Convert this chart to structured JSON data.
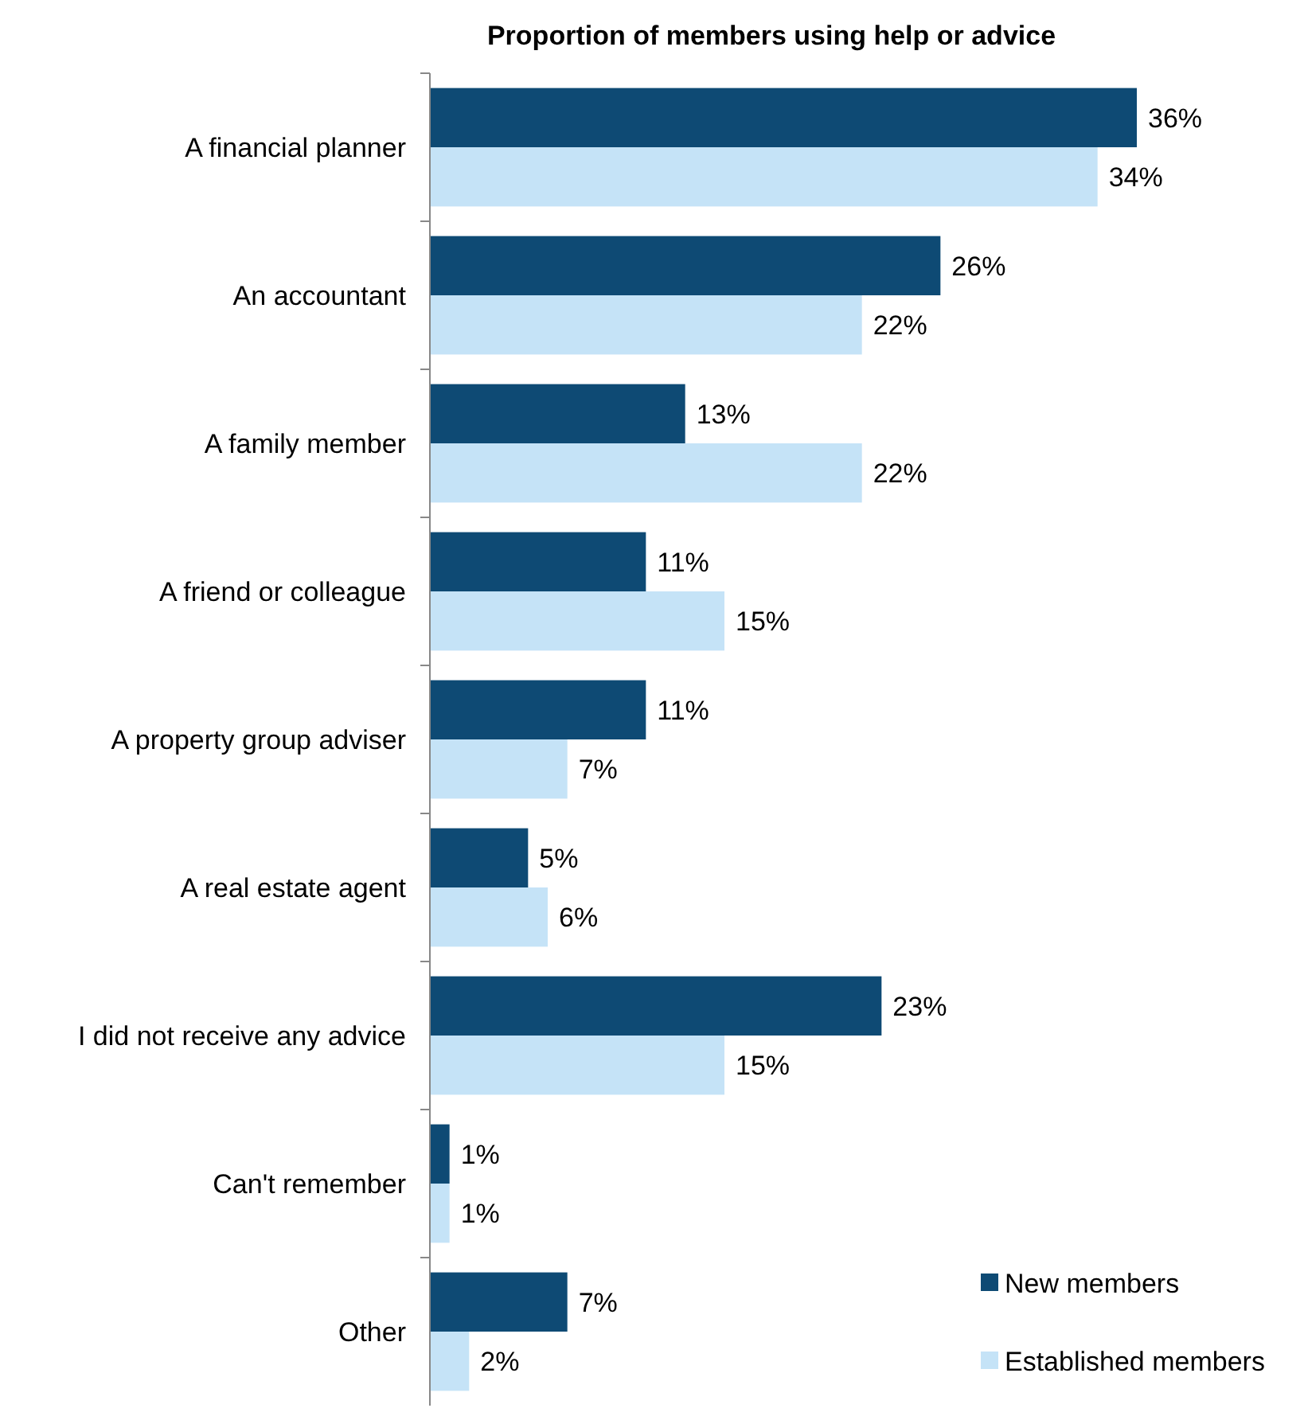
{
  "chart_data": {
    "type": "bar",
    "orientation": "horizontal",
    "title": "Proportion of members using help or advice",
    "categories": [
      "A financial planner",
      "An accountant",
      "A family member",
      "A friend or colleague",
      "A property group adviser",
      "A real estate agent",
      "I did not receive any advice",
      "Can't remember",
      "Other"
    ],
    "series": [
      {
        "name": "New members",
        "color": "#0e4a74",
        "values": [
          36,
          26,
          13,
          11,
          11,
          5,
          23,
          1,
          7
        ],
        "value_labels": [
          "36%",
          "26%",
          "13%",
          "11%",
          "11%",
          "5%",
          "23%",
          "1%",
          "7%"
        ]
      },
      {
        "name": "Established members",
        "color": "#c5e3f7",
        "values": [
          34,
          22,
          22,
          15,
          7,
          6,
          15,
          1,
          2
        ],
        "value_labels": [
          "34%",
          "22%",
          "22%",
          "15%",
          "7%",
          "6%",
          "15%",
          "1%",
          "2%"
        ]
      }
    ],
    "tick_labels": "y",
    "legend": "bottom right"
  }
}
